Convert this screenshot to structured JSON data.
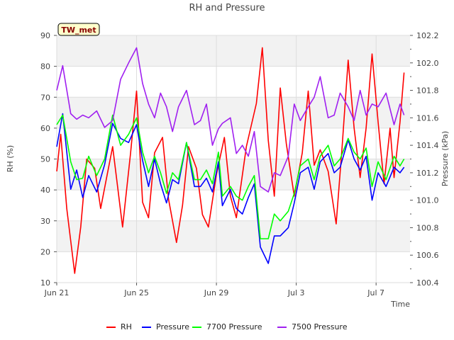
{
  "chart_data": {
    "type": "line",
    "title": "RH and Pressure",
    "badge": "TW_met",
    "xlabel": "Time",
    "ylabel_left": "RH (%)",
    "ylabel_right": "Pressure (kPa)",
    "x_unit": "days",
    "xlim": [
      0,
      17.7
    ],
    "ylim_left": [
      10,
      90
    ],
    "ylim_right": [
      100.4,
      102.2
    ],
    "x_ticks": [
      {
        "x": 0,
        "label": "Jun 21"
      },
      {
        "x": 4,
        "label": "Jun 25"
      },
      {
        "x": 8,
        "label": "Jun 29"
      },
      {
        "x": 12,
        "label": "Jul 3"
      },
      {
        "x": 16,
        "label": "Jul 7"
      }
    ],
    "y_ticks_left": [
      10,
      20,
      30,
      40,
      50,
      60,
      70,
      80,
      90
    ],
    "y_ticks_right": [
      "100.4",
      "100.6",
      "100.8",
      "101.0",
      "101.2",
      "101.4",
      "101.6",
      "101.8",
      "102.0",
      "102.2"
    ],
    "grid": true,
    "legend_position": "bottom",
    "series": [
      {
        "name": "RH",
        "color": "#ff0000",
        "axis": "left",
        "points": [
          [
            0.0,
            46
          ],
          [
            0.2,
            58
          ],
          [
            0.5,
            34
          ],
          [
            0.9,
            13
          ],
          [
            1.2,
            28
          ],
          [
            1.5,
            50
          ],
          [
            1.9,
            47
          ],
          [
            2.2,
            34
          ],
          [
            2.5,
            44
          ],
          [
            2.8,
            54
          ],
          [
            3.3,
            28
          ],
          [
            3.7,
            52
          ],
          [
            4.0,
            72
          ],
          [
            4.3,
            36
          ],
          [
            4.6,
            31
          ],
          [
            4.9,
            52
          ],
          [
            5.3,
            57
          ],
          [
            5.6,
            37
          ],
          [
            6.0,
            23
          ],
          [
            6.3,
            35
          ],
          [
            6.6,
            54
          ],
          [
            7.0,
            47
          ],
          [
            7.3,
            32
          ],
          [
            7.6,
            28
          ],
          [
            8.0,
            45
          ],
          [
            8.4,
            57
          ],
          [
            8.7,
            38
          ],
          [
            9.0,
            31
          ],
          [
            9.5,
            54
          ],
          [
            10.0,
            68
          ],
          [
            10.3,
            86
          ],
          [
            10.6,
            56
          ],
          [
            10.9,
            38
          ],
          [
            11.2,
            73
          ],
          [
            11.5,
            55
          ],
          [
            11.9,
            38
          ],
          [
            12.3,
            52
          ],
          [
            12.6,
            72
          ],
          [
            12.9,
            48
          ],
          [
            13.2,
            53
          ],
          [
            13.6,
            46
          ],
          [
            14.0,
            29
          ],
          [
            14.3,
            54
          ],
          [
            14.6,
            82
          ],
          [
            14.9,
            60
          ],
          [
            15.2,
            44
          ],
          [
            15.5,
            60
          ],
          [
            15.8,
            84
          ],
          [
            16.1,
            62
          ],
          [
            16.4,
            42
          ],
          [
            16.7,
            60
          ],
          [
            16.9,
            44
          ],
          [
            17.2,
            62
          ],
          [
            17.4,
            78
          ]
        ]
      },
      {
        "name": "Pressure",
        "color": "#0000ff",
        "axis": "right",
        "points": [
          [
            0.0,
            101.39
          ],
          [
            0.3,
            101.63
          ],
          [
            0.7,
            101.08
          ],
          [
            1.0,
            101.22
          ],
          [
            1.3,
            101.02
          ],
          [
            1.6,
            101.18
          ],
          [
            2.0,
            101.06
          ],
          [
            2.4,
            101.26
          ],
          [
            2.8,
            101.56
          ],
          [
            3.2,
            101.45
          ],
          [
            3.6,
            101.42
          ],
          [
            4.0,
            101.55
          ],
          [
            4.3,
            101.29
          ],
          [
            4.6,
            101.1
          ],
          [
            4.9,
            101.3
          ],
          [
            5.2,
            101.12
          ],
          [
            5.5,
            100.98
          ],
          [
            5.8,
            101.15
          ],
          [
            6.1,
            101.12
          ],
          [
            6.5,
            101.42
          ],
          [
            6.9,
            101.1
          ],
          [
            7.2,
            101.1
          ],
          [
            7.5,
            101.16
          ],
          [
            7.8,
            101.06
          ],
          [
            8.1,
            101.28
          ],
          [
            8.3,
            100.96
          ],
          [
            8.7,
            101.08
          ],
          [
            9.0,
            100.94
          ],
          [
            9.3,
            100.9
          ],
          [
            9.6,
            101.02
          ],
          [
            9.9,
            101.12
          ],
          [
            10.2,
            100.66
          ],
          [
            10.6,
            100.54
          ],
          [
            10.9,
            100.74
          ],
          [
            11.2,
            100.74
          ],
          [
            11.6,
            100.8
          ],
          [
            11.9,
            100.98
          ],
          [
            12.2,
            101.2
          ],
          [
            12.6,
            101.24
          ],
          [
            12.9,
            101.08
          ],
          [
            13.2,
            101.28
          ],
          [
            13.6,
            101.34
          ],
          [
            13.9,
            101.2
          ],
          [
            14.2,
            101.24
          ],
          [
            14.6,
            101.44
          ],
          [
            14.9,
            101.3
          ],
          [
            15.2,
            101.22
          ],
          [
            15.5,
            101.32
          ],
          [
            15.8,
            101.0
          ],
          [
            16.1,
            101.2
          ],
          [
            16.5,
            101.1
          ],
          [
            16.9,
            101.24
          ],
          [
            17.2,
            101.2
          ],
          [
            17.4,
            101.24
          ]
        ]
      },
      {
        "name": "7700 Pressure",
        "color": "#00ff00",
        "axis": "right",
        "points": [
          [
            0.0,
            101.55
          ],
          [
            0.3,
            101.62
          ],
          [
            0.7,
            101.28
          ],
          [
            1.0,
            101.15
          ],
          [
            1.3,
            101.16
          ],
          [
            1.6,
            101.32
          ],
          [
            2.0,
            101.18
          ],
          [
            2.4,
            101.3
          ],
          [
            2.8,
            101.62
          ],
          [
            3.2,
            101.4
          ],
          [
            3.6,
            101.48
          ],
          [
            4.0,
            101.6
          ],
          [
            4.3,
            101.35
          ],
          [
            4.6,
            101.2
          ],
          [
            4.9,
            101.32
          ],
          [
            5.2,
            101.2
          ],
          [
            5.5,
            101.05
          ],
          [
            5.8,
            101.2
          ],
          [
            6.1,
            101.15
          ],
          [
            6.5,
            101.42
          ],
          [
            6.9,
            101.15
          ],
          [
            7.2,
            101.15
          ],
          [
            7.5,
            101.22
          ],
          [
            7.8,
            101.12
          ],
          [
            8.1,
            101.35
          ],
          [
            8.3,
            101.03
          ],
          [
            8.7,
            101.1
          ],
          [
            9.0,
            101.03
          ],
          [
            9.3,
            101.0
          ],
          [
            9.6,
            101.1
          ],
          [
            9.9,
            101.18
          ],
          [
            10.2,
            100.72
          ],
          [
            10.6,
            100.72
          ],
          [
            10.9,
            100.9
          ],
          [
            11.2,
            100.85
          ],
          [
            11.6,
            100.92
          ],
          [
            11.9,
            101.05
          ],
          [
            12.2,
            101.25
          ],
          [
            12.6,
            101.3
          ],
          [
            12.9,
            101.15
          ],
          [
            13.2,
            101.32
          ],
          [
            13.6,
            101.4
          ],
          [
            13.9,
            101.25
          ],
          [
            14.2,
            101.3
          ],
          [
            14.6,
            101.45
          ],
          [
            14.9,
            101.35
          ],
          [
            15.2,
            101.3
          ],
          [
            15.5,
            101.38
          ],
          [
            15.8,
            101.1
          ],
          [
            16.1,
            101.28
          ],
          [
            16.5,
            101.15
          ],
          [
            16.9,
            101.32
          ],
          [
            17.2,
            101.25
          ],
          [
            17.4,
            101.3
          ]
        ]
      },
      {
        "name": "7500 Pressure",
        "color": "#a020f0",
        "axis": "right",
        "points": [
          [
            0.0,
            101.8
          ],
          [
            0.3,
            101.98
          ],
          [
            0.7,
            101.63
          ],
          [
            1.0,
            101.59
          ],
          [
            1.3,
            101.62
          ],
          [
            1.6,
            101.6
          ],
          [
            2.0,
            101.65
          ],
          [
            2.4,
            101.53
          ],
          [
            2.8,
            101.58
          ],
          [
            3.2,
            101.88
          ],
          [
            3.6,
            102.0
          ],
          [
            4.0,
            102.11
          ],
          [
            4.3,
            101.85
          ],
          [
            4.6,
            101.7
          ],
          [
            4.9,
            101.6
          ],
          [
            5.2,
            101.78
          ],
          [
            5.5,
            101.68
          ],
          [
            5.8,
            101.5
          ],
          [
            6.1,
            101.68
          ],
          [
            6.5,
            101.8
          ],
          [
            6.9,
            101.55
          ],
          [
            7.2,
            101.58
          ],
          [
            7.5,
            101.7
          ],
          [
            7.8,
            101.4
          ],
          [
            8.1,
            101.52
          ],
          [
            8.3,
            101.56
          ],
          [
            8.7,
            101.6
          ],
          [
            9.0,
            101.34
          ],
          [
            9.3,
            101.4
          ],
          [
            9.6,
            101.32
          ],
          [
            9.9,
            101.5
          ],
          [
            10.2,
            101.1
          ],
          [
            10.6,
            101.06
          ],
          [
            10.9,
            101.2
          ],
          [
            11.2,
            101.18
          ],
          [
            11.6,
            101.32
          ],
          [
            11.9,
            101.7
          ],
          [
            12.2,
            101.58
          ],
          [
            12.6,
            101.68
          ],
          [
            12.9,
            101.75
          ],
          [
            13.2,
            101.9
          ],
          [
            13.6,
            101.6
          ],
          [
            13.9,
            101.62
          ],
          [
            14.2,
            101.78
          ],
          [
            14.6,
            101.68
          ],
          [
            14.9,
            101.58
          ],
          [
            15.2,
            101.8
          ],
          [
            15.5,
            101.62
          ],
          [
            15.8,
            101.7
          ],
          [
            16.1,
            101.68
          ],
          [
            16.5,
            101.78
          ],
          [
            16.9,
            101.55
          ],
          [
            17.2,
            101.7
          ],
          [
            17.4,
            101.62
          ]
        ]
      }
    ]
  }
}
